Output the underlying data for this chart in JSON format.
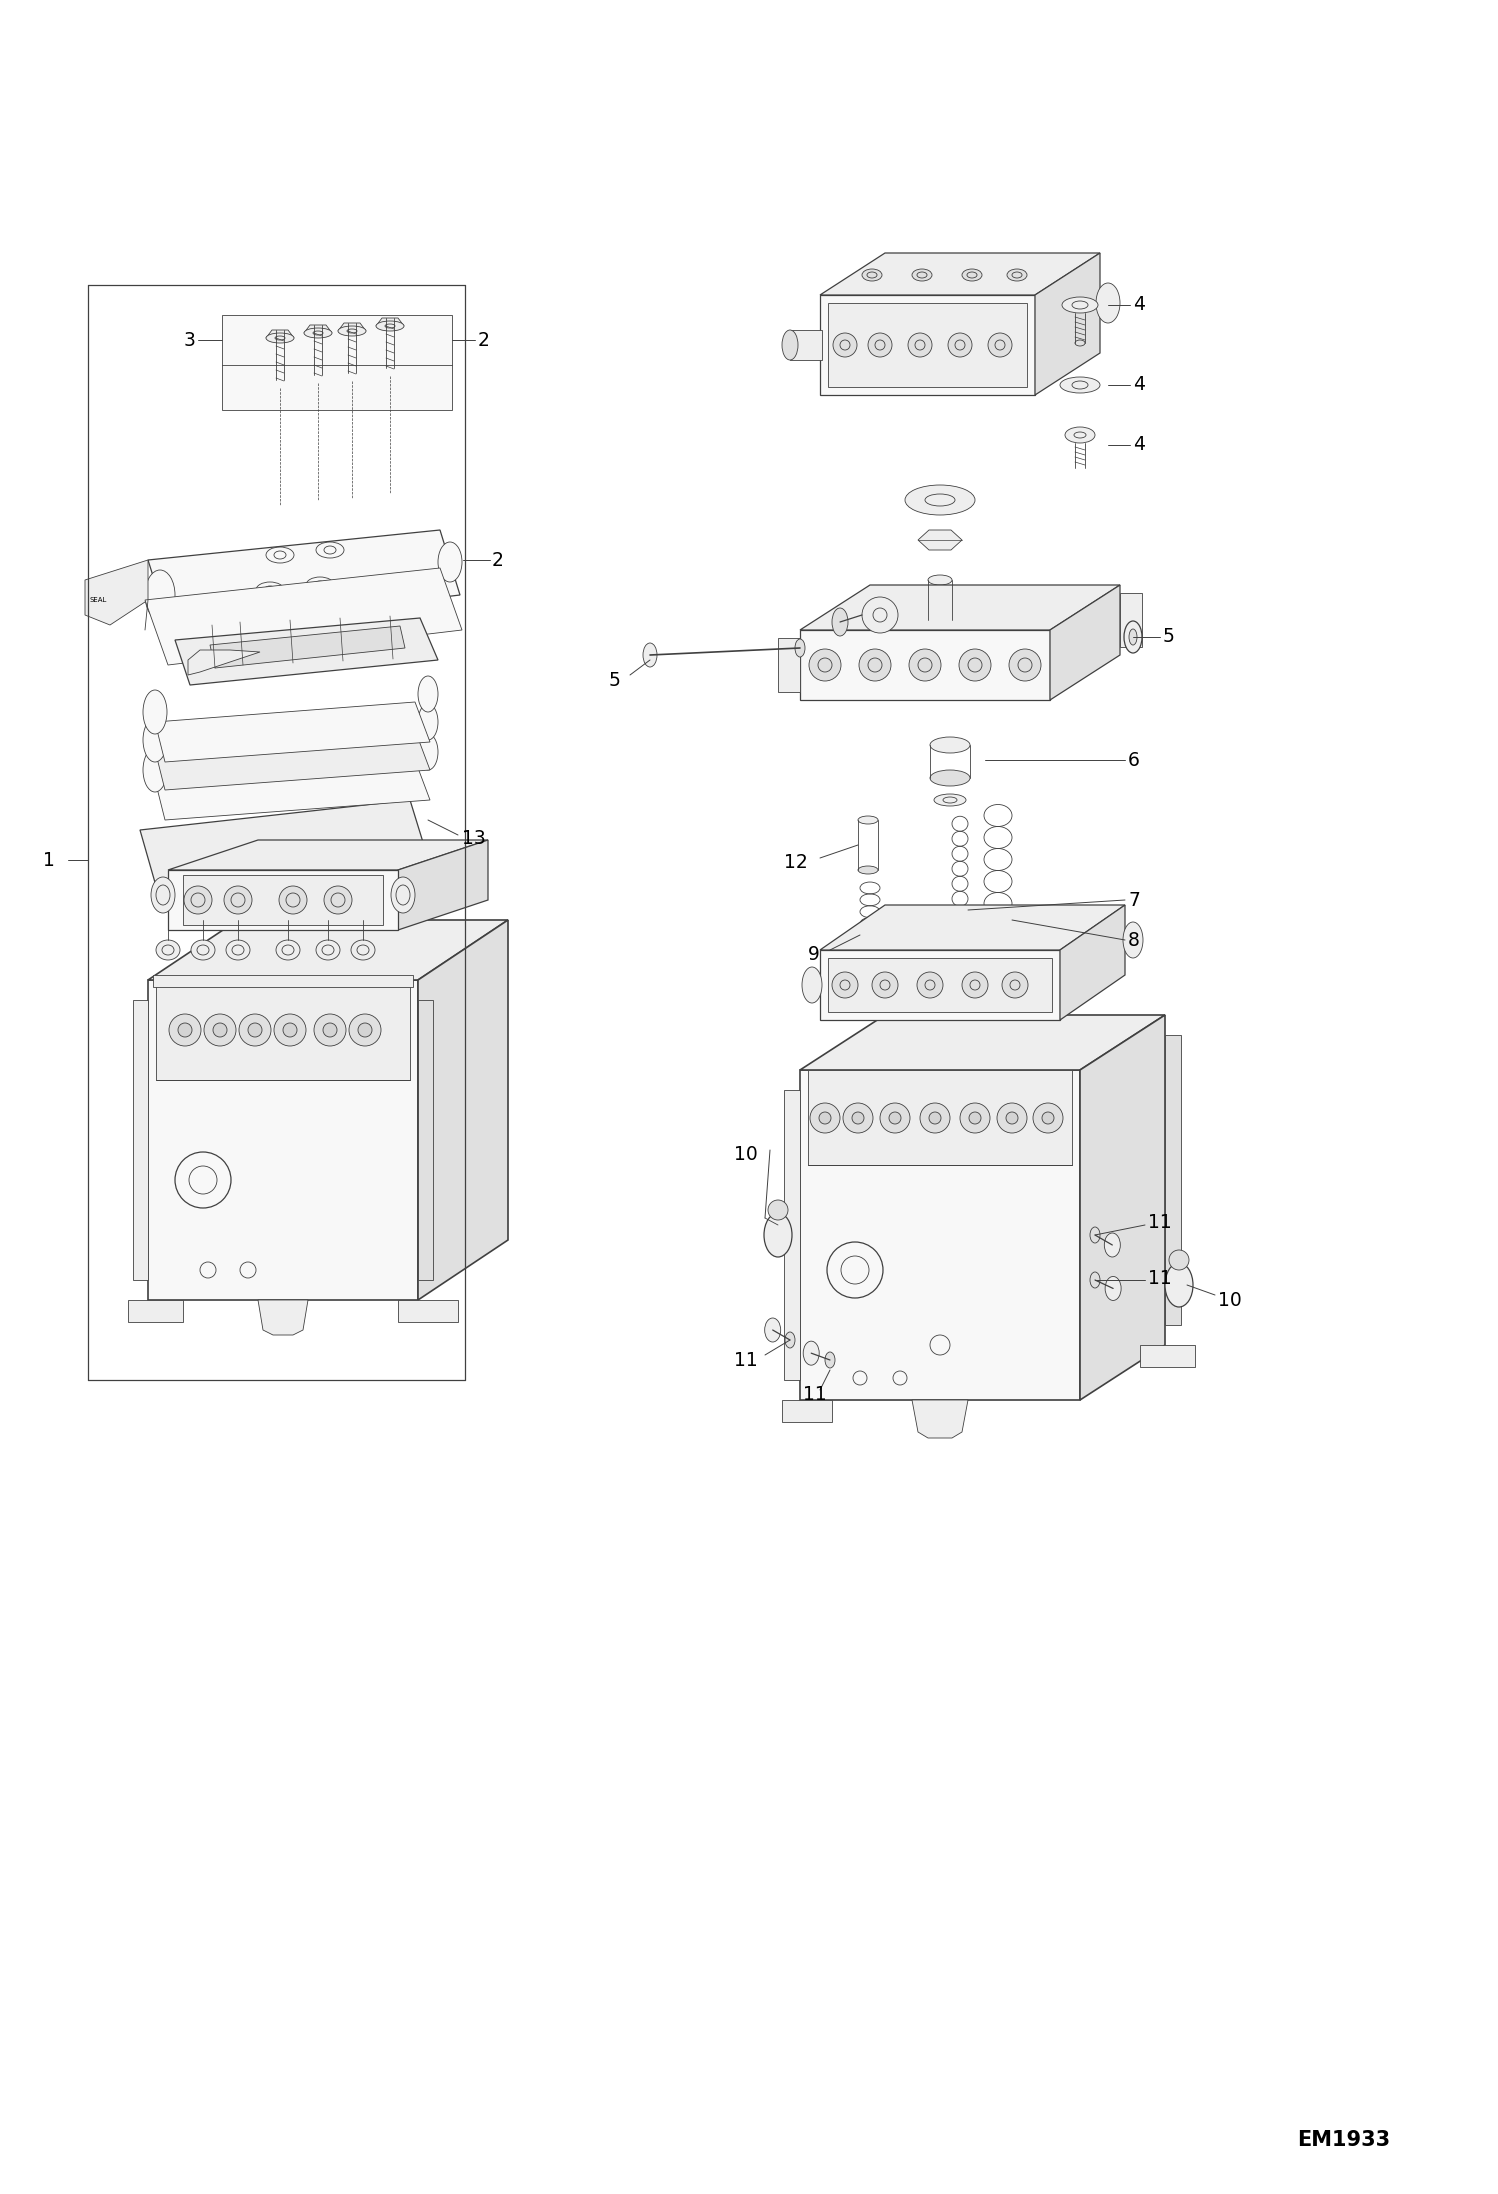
{
  "bg_color": "#ffffff",
  "line_color": "#404040",
  "label_color": "#000000",
  "diagram_id": "EM1933",
  "figsize": [
    14.98,
    21.94
  ],
  "dpi": 100,
  "lw_thin": 0.6,
  "lw_med": 0.9,
  "lw_thick": 1.2,
  "fill_light": "#f8f8f8",
  "fill_mid": "#eeeeee",
  "fill_dark": "#e0e0e0",
  "fill_darker": "#d4d4d4"
}
